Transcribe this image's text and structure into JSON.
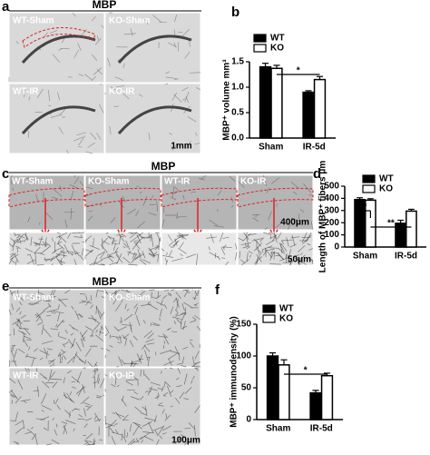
{
  "figure": {
    "panels": [
      "a",
      "b",
      "c",
      "d",
      "e",
      "f"
    ],
    "a": {
      "title": "MBP",
      "labels": [
        "WT-Sham",
        "KO-Sham",
        "WT-IR",
        "KO-IR"
      ],
      "scale": "1mm"
    },
    "c": {
      "title": "MBP",
      "labels": [
        "WT-Sham",
        "KO-Sham",
        "WT-IR",
        "KO-IR"
      ],
      "scale_top": "400μm",
      "scale_bottom": "50μm"
    },
    "e": {
      "title": "MBP",
      "labels": [
        "WT-Sham",
        "KO-Sham",
        "WT-IR",
        "KO-IR"
      ],
      "scale": "100μm"
    }
  },
  "chart_data": [
    {
      "type": "bar",
      "ylabel": "MBP⁺ volume mm³",
      "categories": [
        "Sham",
        "IR-5d"
      ],
      "series": [
        {
          "name": "WT",
          "color": "#000000",
          "values": [
            1.4,
            0.9
          ],
          "errors": [
            0.07,
            0.03
          ]
        },
        {
          "name": "KO",
          "color": "#ffffff",
          "values": [
            1.37,
            1.15
          ],
          "errors": [
            0.06,
            0.06
          ]
        }
      ],
      "ylim": [
        0,
        1.5
      ],
      "yticks": [
        {
          "value": 0,
          "label": "0.0"
        },
        {
          "value": 0.5,
          "label": "0.5"
        },
        {
          "value": 1,
          "label": "1.0"
        },
        {
          "value": 1.5,
          "label": "1.5"
        }
      ],
      "annotations": [
        "*"
      ]
    },
    {
      "type": "bar",
      "ylabel": "Length of MBP⁺ fibers μm",
      "categories": [
        "Sham",
        "IR-5d"
      ],
      "series": [
        {
          "name": "WT",
          "color": "#000000",
          "values": [
            390,
            195
          ],
          "errors": [
            15,
            25
          ]
        },
        {
          "name": "KO",
          "color": "#ffffff",
          "values": [
            385,
            295
          ],
          "errors": [
            12,
            15
          ]
        }
      ],
      "ylim": [
        0,
        500
      ],
      "yticks": [
        0,
        100,
        200,
        300,
        400,
        500
      ],
      "annotations": [
        "*",
        "**"
      ]
    },
    {
      "type": "bar",
      "ylabel": "MBP⁺ immunodensity (%)",
      "categories": [
        "Sham",
        "IR-5d"
      ],
      "series": [
        {
          "name": "WT",
          "color": "#000000",
          "values": [
            100,
            42
          ],
          "errors": [
            5,
            4
          ]
        },
        {
          "name": "KO",
          "color": "#ffffff",
          "values": [
            86,
            69
          ],
          "errors": [
            8,
            4
          ]
        }
      ],
      "ylim": [
        0,
        150
      ],
      "yticks": [
        0,
        50,
        100,
        150
      ],
      "annotations": [
        "*"
      ]
    }
  ]
}
